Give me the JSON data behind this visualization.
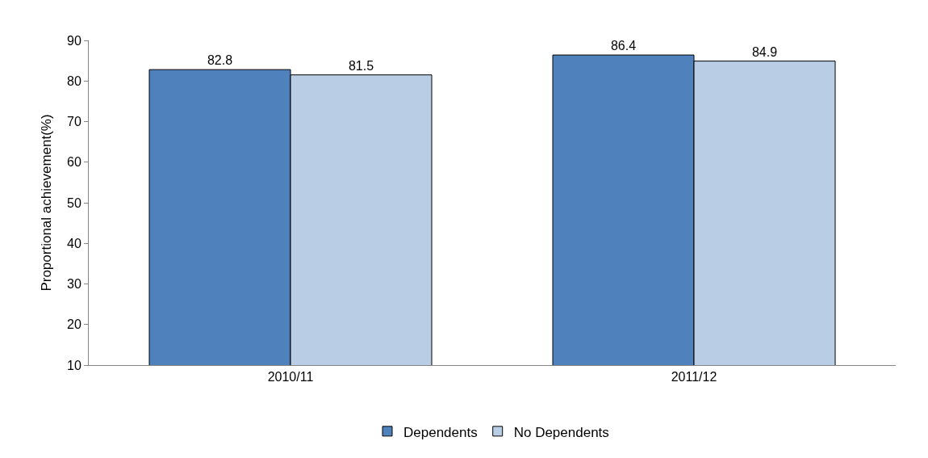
{
  "chart_data": {
    "type": "bar",
    "ylabel": "Proportional achievement(%)",
    "categories": [
      "2010/11",
      "2011/12"
    ],
    "series": [
      {
        "name": "Dependents",
        "color": "#4f81bd",
        "values": [
          82.8,
          86.4
        ]
      },
      {
        "name": "No Dependents",
        "color": "#b9cde5",
        "values": [
          81.5,
          84.9
        ]
      }
    ],
    "ylim": [
      10,
      90
    ],
    "yticks": [
      10,
      20,
      30,
      40,
      50,
      60,
      70,
      80,
      90
    ],
    "data_labels": true,
    "legend": "bottom"
  }
}
